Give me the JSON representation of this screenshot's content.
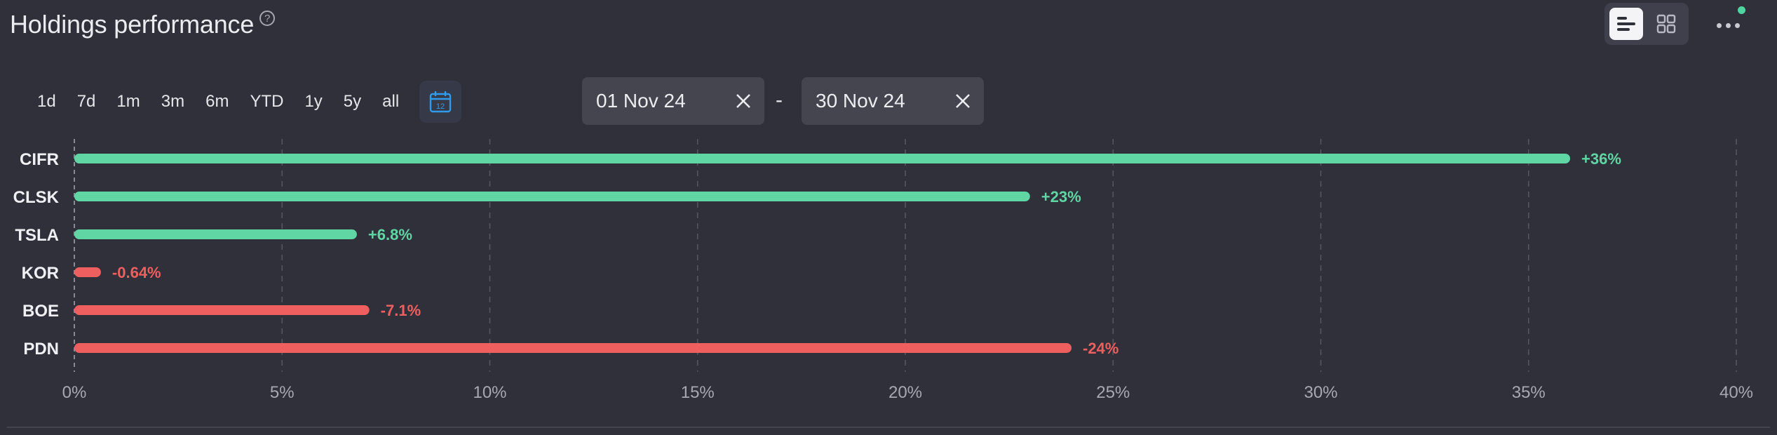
{
  "header": {
    "title": "Holdings performance",
    "help_icon": "question-circle-icon",
    "view_toggle": [
      "bar-list-icon",
      "grid-icon"
    ],
    "more_icon": "ellipsis-icon",
    "status_color": "#4fd6a0"
  },
  "periods": [
    "1d",
    "7d",
    "1m",
    "3m",
    "6m",
    "YTD",
    "1y",
    "5y",
    "all"
  ],
  "calendar_icon": "calendar-icon",
  "date_range": {
    "start": "01 Nov 24",
    "end": "30 Nov 24",
    "separator": "-"
  },
  "chart_data": {
    "type": "bar",
    "orientation": "horizontal",
    "categories": [
      "CIFR",
      "CLSK",
      "TSLA",
      "KOR",
      "BOE",
      "PDN"
    ],
    "values": [
      36,
      23,
      6.8,
      -0.64,
      -7.1,
      -24
    ],
    "value_labels": [
      "+36%",
      "+23%",
      "+6.8%",
      "-0.64%",
      "-7.1%",
      "-24%"
    ],
    "bar_length": "absolute value",
    "xlim": [
      0,
      40
    ],
    "xticks": [
      0,
      5,
      10,
      15,
      20,
      25,
      30,
      35,
      40
    ],
    "xtick_labels": [
      "0%",
      "5%",
      "10%",
      "15%",
      "20%",
      "25%",
      "30%",
      "35%",
      "40%"
    ],
    "grid": "vertical dashed",
    "colors": {
      "positive": "#5fd6a4",
      "negative": "#ef5f5f",
      "grid": "#55555f",
      "axis": "#8a8a94"
    }
  }
}
